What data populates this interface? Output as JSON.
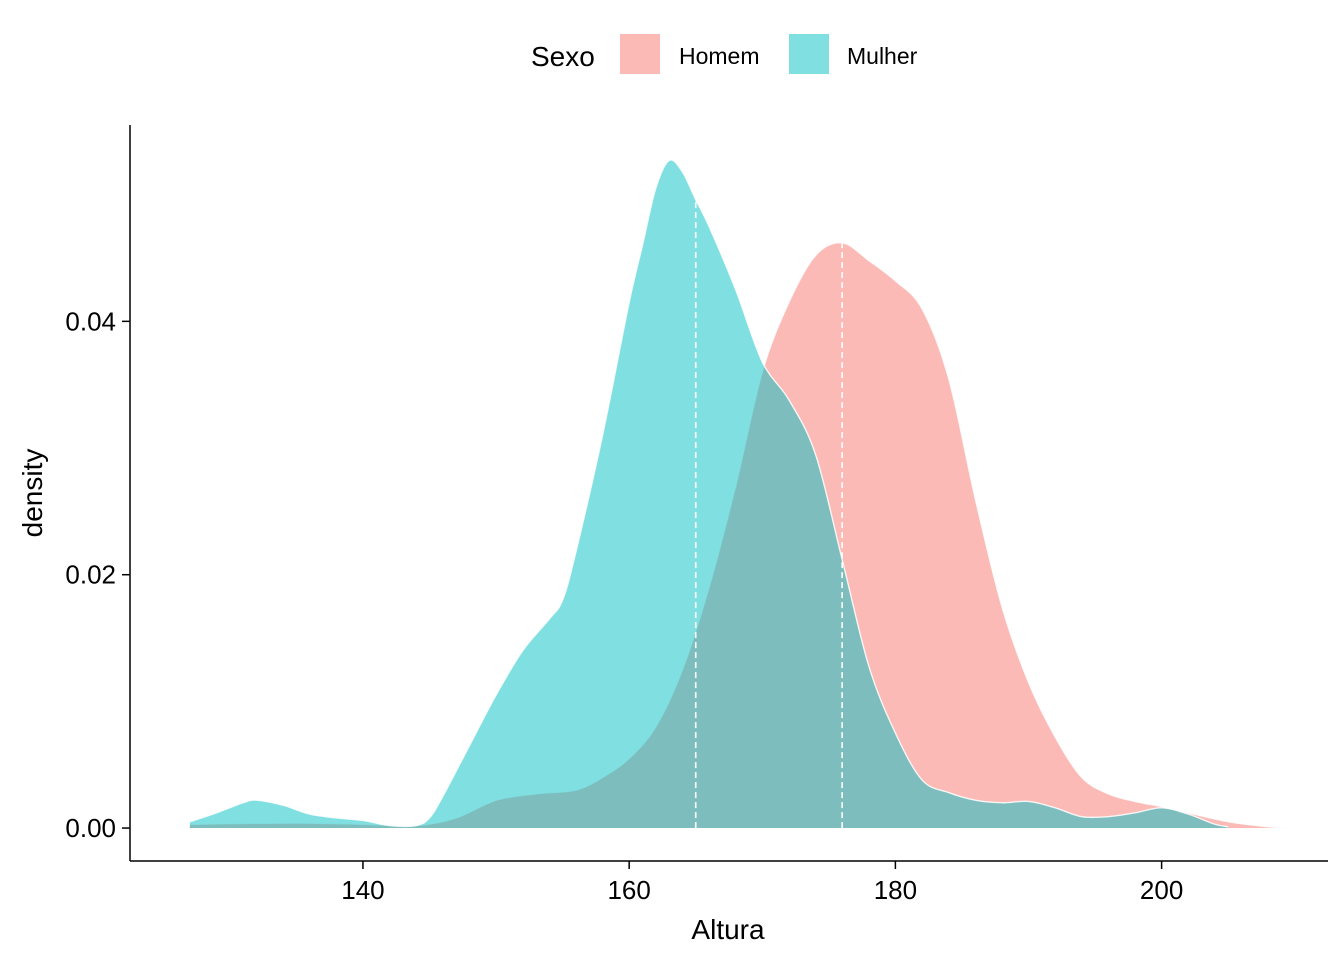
{
  "chart_data": {
    "type": "area",
    "subtype": "density",
    "xlabel": "Altura",
    "ylabel": "density",
    "xlim": [
      122.5,
      212.5
    ],
    "ylim": [
      -0.0026,
      0.0555
    ],
    "x_ticks": [
      140,
      160,
      180,
      200
    ],
    "x_tick_labels": [
      "140",
      "160",
      "180",
      "200"
    ],
    "y_ticks": [
      0.0,
      0.02,
      0.04
    ],
    "y_tick_labels": [
      "0.00",
      "0.02",
      "0.04"
    ],
    "grid": false,
    "legend": {
      "title": "Sexo",
      "position": "top"
    },
    "series": [
      {
        "name": "Homem",
        "color": "#F8766D",
        "fill_opacity": 0.5,
        "mean": 176,
        "points": [
          [
            127,
            0.0003
          ],
          [
            135,
            0.0004
          ],
          [
            140,
            0.0003
          ],
          [
            144,
            0.0002
          ],
          [
            147,
            0.0008
          ],
          [
            150,
            0.0022
          ],
          [
            153,
            0.0027
          ],
          [
            156,
            0.003
          ],
          [
            158,
            0.004
          ],
          [
            160,
            0.0055
          ],
          [
            162,
            0.008
          ],
          [
            164,
            0.0125
          ],
          [
            166,
            0.019
          ],
          [
            168,
            0.027
          ],
          [
            170,
            0.036
          ],
          [
            172,
            0.0415
          ],
          [
            174,
            0.0452
          ],
          [
            176,
            0.0462
          ],
          [
            178,
            0.0448
          ],
          [
            180,
            0.0432
          ],
          [
            182,
            0.041
          ],
          [
            184,
            0.0355
          ],
          [
            186,
            0.026
          ],
          [
            188,
            0.0175
          ],
          [
            190,
            0.0115
          ],
          [
            192,
            0.0072
          ],
          [
            194,
            0.004
          ],
          [
            196,
            0.0027
          ],
          [
            198,
            0.0021
          ],
          [
            200,
            0.0017
          ],
          [
            202,
            0.0012
          ],
          [
            205,
            0.0005
          ],
          [
            208,
            0.0001
          ],
          [
            210,
            0.0
          ]
        ]
      },
      {
        "name": "Mulher",
        "color": "#00BFC4",
        "fill_opacity": 0.5,
        "mean": 165,
        "points": [
          [
            127,
            0.0005
          ],
          [
            129,
            0.0012
          ],
          [
            131,
            0.002
          ],
          [
            132,
            0.0022
          ],
          [
            134,
            0.0018
          ],
          [
            136,
            0.0011
          ],
          [
            138,
            0.0008
          ],
          [
            140,
            0.0006
          ],
          [
            142,
            0.0002
          ],
          [
            144,
            0.0002
          ],
          [
            145,
            0.0008
          ],
          [
            146,
            0.0025
          ],
          [
            148,
            0.0065
          ],
          [
            150,
            0.0105
          ],
          [
            152,
            0.014
          ],
          [
            154,
            0.0165
          ],
          [
            155,
            0.018
          ],
          [
            156,
            0.0218
          ],
          [
            158,
            0.031
          ],
          [
            160,
            0.0415
          ],
          [
            161,
            0.046
          ],
          [
            162,
            0.0505
          ],
          [
            163,
            0.0527
          ],
          [
            164,
            0.0518
          ],
          [
            165,
            0.0496
          ],
          [
            166,
            0.0475
          ],
          [
            168,
            0.0425
          ],
          [
            170,
            0.0368
          ],
          [
            172,
            0.0338
          ],
          [
            174,
            0.0295
          ],
          [
            176,
            0.0212
          ],
          [
            178,
            0.0128
          ],
          [
            180,
            0.0075
          ],
          [
            182,
            0.0038
          ],
          [
            184,
            0.0028
          ],
          [
            186,
            0.0022
          ],
          [
            188,
            0.002
          ],
          [
            190,
            0.0021
          ],
          [
            192,
            0.0016
          ],
          [
            194,
            0.0009
          ],
          [
            196,
            0.0009
          ],
          [
            198,
            0.0012
          ],
          [
            200,
            0.0016
          ],
          [
            202,
            0.0011
          ],
          [
            204,
            0.0003
          ],
          [
            205,
            0.0001
          ]
        ]
      }
    ]
  }
}
